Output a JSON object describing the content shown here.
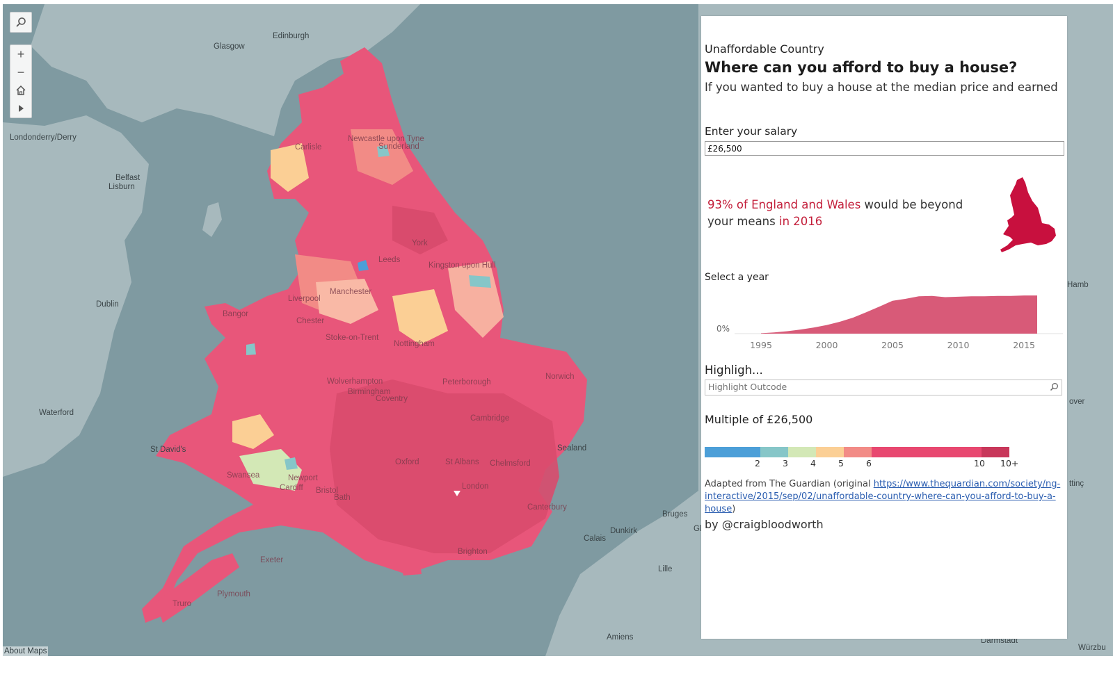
{
  "map": {
    "about_label": "About Maps",
    "places": [
      {
        "name": "Glasgow"
      },
      {
        "name": "Edinburgh"
      },
      {
        "name": "Londonderry/Derry"
      },
      {
        "name": "Belfast"
      },
      {
        "name": "Lisburn"
      },
      {
        "name": "Dublin"
      },
      {
        "name": "Waterford"
      },
      {
        "name": "St David's"
      },
      {
        "name": "Bruges"
      },
      {
        "name": "Dunkirk"
      },
      {
        "name": "Calais"
      },
      {
        "name": "Lille"
      },
      {
        "name": "Amiens"
      },
      {
        "name": "Darmstadt"
      },
      {
        "name": "Würzbu"
      },
      {
        "name": "Hamb"
      },
      {
        "name": "over"
      },
      {
        "name": "ttinç"
      },
      {
        "name": "Gl"
      }
    ],
    "onmap_places": [
      {
        "name": "Newcastle upon Tyne"
      },
      {
        "name": "Sunderland"
      },
      {
        "name": "Carlisle"
      },
      {
        "name": "York"
      },
      {
        "name": "Leeds"
      },
      {
        "name": "Kingston upon Hull"
      },
      {
        "name": "Liverpool"
      },
      {
        "name": "Manchester"
      },
      {
        "name": "Bangor"
      },
      {
        "name": "Chester"
      },
      {
        "name": "Stoke-on-Trent"
      },
      {
        "name": "Nottingham"
      },
      {
        "name": "Norwich"
      },
      {
        "name": "Wolverhampton"
      },
      {
        "name": "Birmingham"
      },
      {
        "name": "Coventry"
      },
      {
        "name": "Peterborough"
      },
      {
        "name": "Cambridge"
      },
      {
        "name": "Oxford"
      },
      {
        "name": "St Albans"
      },
      {
        "name": "Chelmsford"
      },
      {
        "name": "Sealand"
      },
      {
        "name": "Swansea"
      },
      {
        "name": "Newport"
      },
      {
        "name": "Cardiff"
      },
      {
        "name": "Bristol"
      },
      {
        "name": "Bath"
      },
      {
        "name": "London"
      },
      {
        "name": "Canterbury"
      },
      {
        "name": "Brighton"
      },
      {
        "name": "Exeter"
      },
      {
        "name": "Plymouth"
      },
      {
        "name": "Truro"
      }
    ],
    "controls": {
      "search_icon": "search-icon",
      "zoom_in": "+",
      "zoom_out": "−",
      "home_icon": "home-icon",
      "play_icon": "play-icon"
    }
  },
  "panel": {
    "title_small": "Unaffordable Country",
    "title": "Where can you afford to buy a house?",
    "subtitle": "If you wanted to buy a house at the median price and earned",
    "salary_label": "Enter your salary",
    "salary_value": "£26,500",
    "stmt": {
      "pct_text": "93% of England and Wales",
      "mid_text": " would be beyond",
      "line2_text": "your means ",
      "year_text": "in 2016"
    },
    "year_label": "Select a year",
    "highlight_label": "Highligh...",
    "highlight_placeholder": "Highlight Outcode",
    "legend_title": "Multiple of £26,500",
    "legend_labels": [
      "2",
      "3",
      "4",
      "5",
      "6",
      "10",
      "10+"
    ],
    "legend_colors": [
      "#4c9fd8",
      "#86c6c8",
      "#d3e8b6",
      "#fbcf95",
      "#f28b86",
      "#e84870",
      "#c8375a"
    ],
    "source_prefix": "Adapted from The Guardian (original ",
    "source_link": "https://www.thequardian.com/society/ng-interactive/2015/sep/02/unaffordable-country-where-can-you-afford-to-buy-a-house",
    "source_suffix": ")",
    "byline": "by @craigbloodworth"
  },
  "chart_data": {
    "type": "area",
    "title": "",
    "x": [
      1995,
      1996,
      1997,
      1998,
      1999,
      2000,
      2001,
      2002,
      2003,
      2004,
      2005,
      2006,
      2007,
      2008,
      2009,
      2010,
      2011,
      2012,
      2013,
      2014,
      2015,
      2016
    ],
    "series": [
      {
        "values": [
          1,
          3,
          6,
          10,
          15,
          21,
          29,
          39,
          52,
          66,
          80,
          85,
          91,
          92,
          89,
          90,
          91,
          91,
          92,
          92,
          93,
          93
        ]
      }
    ],
    "xticks": [
      "1995",
      "2000",
      "2005",
      "2010",
      "2015"
    ],
    "ytick": "0%",
    "ylim": [
      0,
      100
    ],
    "color": "#d85a78"
  }
}
